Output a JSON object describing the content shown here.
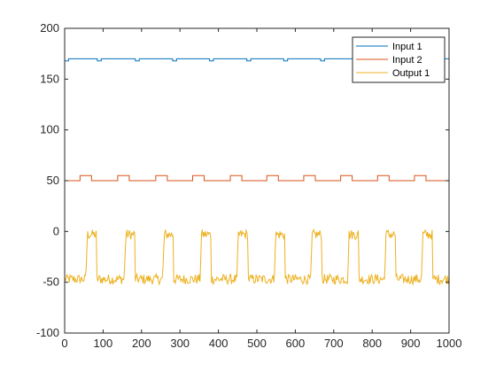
{
  "chart_data": {
    "type": "line",
    "title": "",
    "xlabel": "",
    "ylabel": "",
    "xlim": [
      0,
      1000
    ],
    "ylim": [
      -100,
      200
    ],
    "x_ticks": [
      0,
      100,
      200,
      300,
      400,
      500,
      600,
      700,
      800,
      900,
      1000
    ],
    "y_ticks": [
      -100,
      -50,
      0,
      50,
      100,
      150,
      200
    ],
    "x_tick_labels": [
      "0",
      "100",
      "200",
      "300",
      "400",
      "500",
      "600",
      "700",
      "800",
      "900",
      "1000"
    ],
    "y_tick_labels": [
      "-100",
      "-50",
      "0",
      "50",
      "100",
      "150",
      "200"
    ],
    "grid": false,
    "legend_location": "top-right",
    "series": [
      {
        "name": "Input 1",
        "color": "#0072BD",
        "shape": "pulse",
        "base": 170,
        "pulse_level": 168,
        "pulse_starts": [
          0,
          85,
          184,
          281,
          377,
          474,
          570,
          666,
          762,
          858,
          955
        ],
        "pulse_width": 10
      },
      {
        "name": "Input 2",
        "color": "#D95319",
        "shape": "pulse",
        "base": 50,
        "pulse_level": 55,
        "pulse_starts": [
          40,
          138,
          237,
          333,
          431,
          526,
          622,
          718,
          814,
          910
        ],
        "pulse_width": 30
      },
      {
        "name": "Output 1",
        "color": "#EDB120",
        "shape": "noisy-response",
        "low_level": -47,
        "high_level": -3,
        "noise_amplitude": 5,
        "pulse_starts": [
          55,
          155,
          255,
          352,
          448,
          545,
          640,
          736,
          832,
          928
        ],
        "pulse_width": 28
      }
    ]
  }
}
